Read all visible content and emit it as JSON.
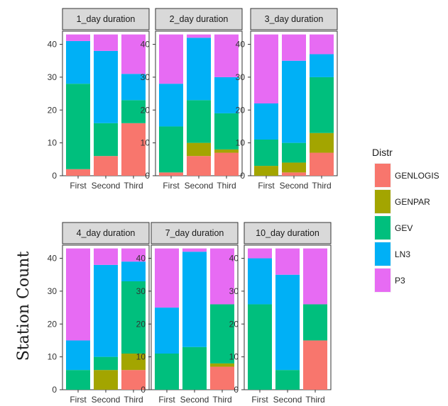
{
  "chart_data": {
    "type": "bar",
    "stacked": true,
    "ylabel": "Station Count",
    "xlabel": "",
    "ylim": [
      0,
      44
    ],
    "yticks": [
      0,
      10,
      20,
      30,
      40
    ],
    "categories": [
      "First",
      "Second",
      "Third"
    ],
    "legend": {
      "title": "Distr",
      "position": "right",
      "entries": [
        {
          "name": "GENLOGIS",
          "color": "#F8766D"
        },
        {
          "name": "GENPAR",
          "color": "#A3A500"
        },
        {
          "name": "GEV",
          "color": "#00BF7D"
        },
        {
          "name": "LN3",
          "color": "#00B0F6"
        },
        {
          "name": "P3",
          "color": "#E76BF3"
        }
      ]
    },
    "stack_order": [
      "GENLOGIS",
      "GENPAR",
      "GEV",
      "LN3",
      "P3"
    ],
    "panels": [
      {
        "title": "1_day duration",
        "bars": [
          {
            "category": "First",
            "GENLOGIS": 2,
            "GENPAR": 0,
            "GEV": 26,
            "LN3": 13,
            "P3": 2
          },
          {
            "category": "Second",
            "GENLOGIS": 6,
            "GENPAR": 0,
            "GEV": 10,
            "LN3": 22,
            "P3": 5
          },
          {
            "category": "Third",
            "GENLOGIS": 16,
            "GENPAR": 0,
            "GEV": 7,
            "LN3": 8,
            "P3": 12
          }
        ]
      },
      {
        "title": "2_day duration",
        "bars": [
          {
            "category": "First",
            "GENLOGIS": 1,
            "GENPAR": 0,
            "GEV": 14,
            "LN3": 13,
            "P3": 15
          },
          {
            "category": "Second",
            "GENLOGIS": 6,
            "GENPAR": 4,
            "GEV": 13,
            "LN3": 19,
            "P3": 1
          },
          {
            "category": "Third",
            "GENLOGIS": 7,
            "GENPAR": 1,
            "GEV": 11,
            "LN3": 11,
            "P3": 13
          }
        ]
      },
      {
        "title": "3_day duration",
        "bars": [
          {
            "category": "First",
            "GENLOGIS": 0,
            "GENPAR": 3,
            "GEV": 8,
            "LN3": 11,
            "P3": 21
          },
          {
            "category": "Second",
            "GENLOGIS": 1,
            "GENPAR": 3,
            "GEV": 6,
            "LN3": 25,
            "P3": 8
          },
          {
            "category": "Third",
            "GENLOGIS": 7,
            "GENPAR": 6,
            "GEV": 17,
            "LN3": 7,
            "P3": 6
          }
        ]
      },
      {
        "title": "4_day duration",
        "bars": [
          {
            "category": "First",
            "GENLOGIS": 0,
            "GENPAR": 0,
            "GEV": 6,
            "LN3": 9,
            "P3": 28
          },
          {
            "category": "Second",
            "GENLOGIS": 0,
            "GENPAR": 6,
            "GEV": 4,
            "LN3": 28,
            "P3": 5
          },
          {
            "category": "Third",
            "GENLOGIS": 6,
            "GENPAR": 5,
            "GEV": 22,
            "LN3": 6,
            "P3": 4
          }
        ]
      },
      {
        "title": "7_day duration",
        "bars": [
          {
            "category": "First",
            "GENLOGIS": 0,
            "GENPAR": 0,
            "GEV": 11,
            "LN3": 14,
            "P3": 18
          },
          {
            "category": "Second",
            "GENLOGIS": 0,
            "GENPAR": 0,
            "GEV": 13,
            "LN3": 29,
            "P3": 1
          },
          {
            "category": "Third",
            "GENLOGIS": 7,
            "GENPAR": 1,
            "GEV": 18,
            "LN3": 0,
            "P3": 17
          }
        ]
      },
      {
        "title": "10_day duration",
        "bars": [
          {
            "category": "First",
            "GENLOGIS": 0,
            "GENPAR": 0,
            "GEV": 26,
            "LN3": 14,
            "P3": 3
          },
          {
            "category": "Second",
            "GENLOGIS": 0,
            "GENPAR": 0,
            "GEV": 6,
            "LN3": 29,
            "P3": 8
          },
          {
            "category": "Third",
            "GENLOGIS": 15,
            "GENPAR": 0,
            "GEV": 11,
            "LN3": 0,
            "P3": 17
          }
        ]
      }
    ]
  }
}
